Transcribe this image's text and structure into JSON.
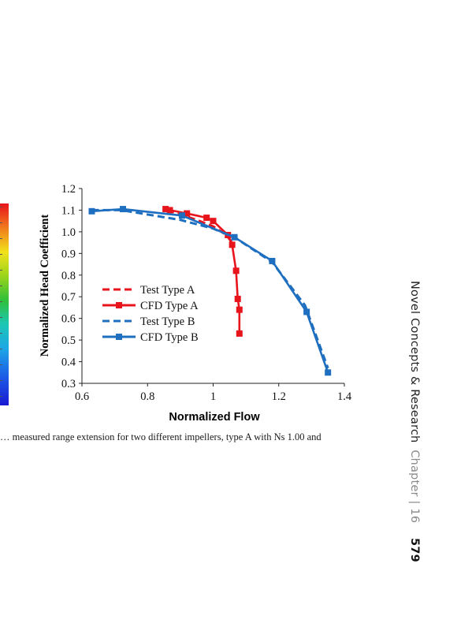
{
  "caption": "… measured range extension for two different impellers, type A with Ns 1.00 and",
  "running_head": {
    "book_title": "Novel Concepts & Research",
    "chapter_label": "Chapter | 16",
    "page_number": "579"
  },
  "colors": {
    "type_a": "#e8141c",
    "type_b": "#1f6fc0"
  },
  "chart_data": {
    "type": "line",
    "xlabel": "Normalized Flow",
    "ylabel": "Normalized Head Coefficient",
    "xlim": [
      0.6,
      1.4
    ],
    "ylim": [
      0.3,
      1.2
    ],
    "xticks": [
      0.6,
      0.8,
      1,
      1.2,
      1.4
    ],
    "xtick_labels": [
      "0.6",
      "0.8",
      "1",
      "1.2",
      "1.4"
    ],
    "yticks": [
      0.3,
      0.4,
      0.5,
      0.6,
      0.7,
      0.8,
      0.9,
      1.0,
      1.1,
      1.2
    ],
    "ytick_labels": [
      "0.3",
      "0.4",
      "0.5",
      "0.6",
      "0.7",
      "0.8",
      "0.9",
      "1.0",
      "1.1",
      "1.2"
    ],
    "grid": false,
    "legend_position": "center-left",
    "series": [
      {
        "name": "Test Type A",
        "color": "#e8141c",
        "dash": true,
        "markers": false,
        "x": [
          0.86,
          0.95,
          1.0,
          1.04,
          1.063
        ],
        "y": [
          1.1,
          1.055,
          1.025,
          0.985,
          0.94
        ]
      },
      {
        "name": "CFD Type A",
        "color": "#e8141c",
        "dash": false,
        "markers": true,
        "x": [
          0.855,
          0.868,
          0.92,
          0.98,
          1.0,
          1.045,
          1.058,
          1.07,
          1.075,
          1.08,
          1.08
        ],
        "y": [
          1.105,
          1.1,
          1.085,
          1.065,
          1.05,
          0.985,
          0.94,
          0.82,
          0.69,
          0.64,
          0.53
        ]
      },
      {
        "name": "Test Type B",
        "color": "#1f6fc0",
        "dash": true,
        "markers": false,
        "x": [
          0.63,
          0.72,
          0.9,
          1.0,
          1.07,
          1.18,
          1.28,
          1.35
        ],
        "y": [
          1.1,
          1.1,
          1.055,
          1.015,
          0.97,
          0.86,
          0.66,
          0.37
        ]
      },
      {
        "name": "CFD Type B",
        "color": "#1f6fc0",
        "dash": false,
        "markers": true,
        "x": [
          0.63,
          0.725,
          0.905,
          1.065,
          1.18,
          1.285,
          1.35
        ],
        "y": [
          1.095,
          1.105,
          1.075,
          0.975,
          0.865,
          0.63,
          0.35
        ]
      }
    ]
  }
}
